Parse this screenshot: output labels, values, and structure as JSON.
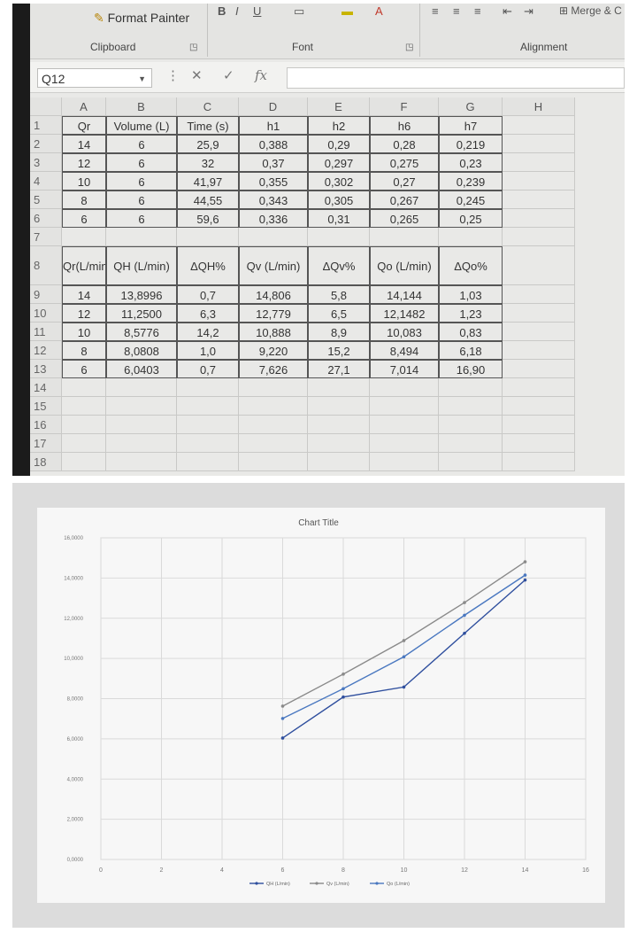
{
  "ribbon": {
    "format_painter": "Format Painter",
    "groups": [
      "Clipboard",
      "Font",
      "Alignment"
    ],
    "merge_label": "Merge & C"
  },
  "formula_bar": {
    "cell_ref": "Q12",
    "fx": "fx",
    "cancel": "✕",
    "confirm": "✓",
    "value": ""
  },
  "sheet": {
    "columns": [
      "A",
      "B",
      "C",
      "D",
      "E",
      "F",
      "G",
      "H"
    ],
    "table1_headers": [
      "Qr",
      "Volume (L)",
      "Time (s)",
      "h1",
      "h2",
      "h6",
      "h7"
    ],
    "table1_rows": [
      [
        "14",
        "6",
        "25,9",
        "0,388",
        "0,29",
        "0,28",
        "0,219"
      ],
      [
        "12",
        "6",
        "32",
        "0,37",
        "0,297",
        "0,275",
        "0,23"
      ],
      [
        "10",
        "6",
        "41,97",
        "0,355",
        "0,302",
        "0,27",
        "0,239"
      ],
      [
        "8",
        "6",
        "44,55",
        "0,343",
        "0,305",
        "0,267",
        "0,245"
      ],
      [
        "6",
        "6",
        "59,6",
        "0,336",
        "0,31",
        "0,265",
        "0,25"
      ]
    ],
    "table2_headers": [
      "Qr(L/min)",
      "QH (L/min)",
      "ΔQH%",
      "Qv (L/min)",
      "ΔQv%",
      "Qo (L/min)",
      "ΔQo%"
    ],
    "table2_rows": [
      [
        "14",
        "13,8996",
        "0,7",
        "14,806",
        "5,8",
        "14,144",
        "1,03"
      ],
      [
        "12",
        "11,2500",
        "6,3",
        "12,779",
        "6,5",
        "12,1482",
        "1,23"
      ],
      [
        "10",
        "8,5776",
        "14,2",
        "10,888",
        "8,9",
        "10,083",
        "0,83"
      ],
      [
        "8",
        "8,0808",
        "1,0",
        "9,220",
        "15,2",
        "8,494",
        "6,18"
      ],
      [
        "6",
        "6,0403",
        "0,7",
        "7,626",
        "27,1",
        "7,014",
        "16,90"
      ]
    ],
    "row_numbers": [
      "1",
      "2",
      "3",
      "4",
      "5",
      "6",
      "7",
      "8",
      "9",
      "10",
      "11",
      "12",
      "13",
      "14",
      "15",
      "16",
      "17",
      "18"
    ]
  },
  "chart_data": {
    "type": "line",
    "title": "Chart Title",
    "xlim": [
      0,
      16
    ],
    "ylim": [
      0,
      16
    ],
    "x_ticks": [
      "0",
      "2",
      "4",
      "6",
      "8",
      "10",
      "12",
      "14",
      "16"
    ],
    "y_ticks": [
      "0,0000",
      "2,0000",
      "4,0000",
      "6,0000",
      "8,0000",
      "10,0000",
      "12,0000",
      "14,0000",
      "16,0000"
    ],
    "x": [
      6,
      8,
      10,
      12,
      14
    ],
    "series": [
      {
        "name": "QH (L/min)",
        "values": [
          6.0403,
          8.0808,
          8.5776,
          11.25,
          13.8996
        ],
        "color": "#2f4f9e"
      },
      {
        "name": "Qv (L/min)",
        "values": [
          7.626,
          9.22,
          10.888,
          12.779,
          14.806
        ],
        "color": "#8a8a8a"
      },
      {
        "name": "Qo (L/min)",
        "values": [
          7.014,
          8.494,
          10.083,
          12.1482,
          14.144
        ],
        "color": "#4a78c0"
      }
    ],
    "legend_position": "bottom",
    "grid": true
  }
}
